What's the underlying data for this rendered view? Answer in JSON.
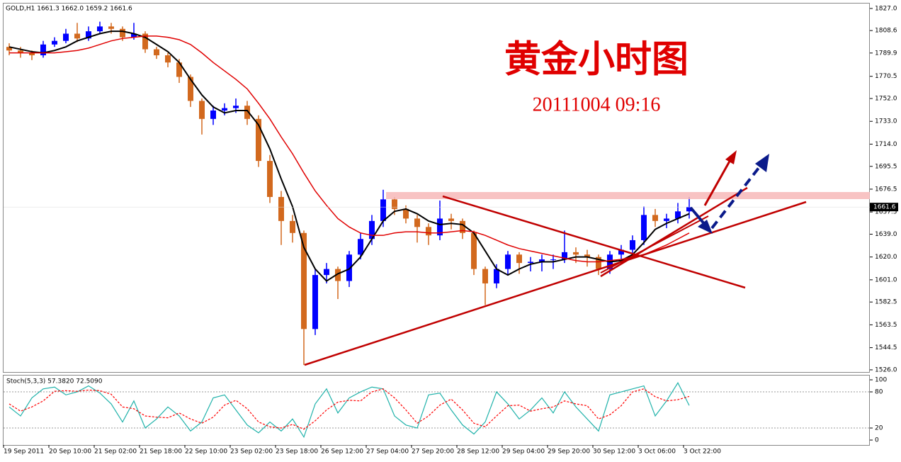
{
  "header": "GOLD,H1  1661.3 1662.0 1659.2 1661.6",
  "chart_data": [
    {
      "type": "candlestick",
      "title": "黄金小时图",
      "subtitle": "20111004 09:16",
      "last_price": 1661.6,
      "up_color": "#0000ff",
      "down_color": "#d2691e",
      "ylim": [
        1524.2,
        1831.1
      ],
      "yticks": [
        {
          "value": 1827,
          "label": "1827.0"
        },
        {
          "value": 1808.6,
          "label": "1808.6"
        },
        {
          "value": 1789.9,
          "label": "1789.9"
        },
        {
          "value": 1770.5,
          "label": "1770.5"
        },
        {
          "value": 1752,
          "label": "1752.0"
        },
        {
          "value": 1733,
          "label": "1733.0"
        },
        {
          "value": 1714,
          "label": "1714.0"
        },
        {
          "value": 1695.5,
          "label": "1695.5"
        },
        {
          "value": 1676.5,
          "label": "1676.5"
        },
        {
          "value": 1657.5,
          "label": "1657.5"
        },
        {
          "value": 1639,
          "label": "1639.0"
        },
        {
          "value": 1620,
          "label": "1620.0"
        },
        {
          "value": 1601,
          "label": "1601.0"
        },
        {
          "value": 1582.5,
          "label": "1582.5"
        },
        {
          "value": 1563.5,
          "label": "1563.5"
        },
        {
          "value": 1544.5,
          "label": "1544.5"
        },
        {
          "value": 1526,
          "label": "1526.0"
        }
      ],
      "open": [
        1795,
        1792,
        1790,
        1788,
        1797,
        1800,
        1806,
        1802,
        1808,
        1812,
        1810,
        1803,
        1806,
        1793,
        1788,
        1782,
        1770,
        1750,
        1735,
        1742,
        1744,
        1746,
        1735,
        1700,
        1670,
        1650,
        1640,
        1560,
        1605,
        1610,
        1600,
        1622,
        1635,
        1650,
        1668,
        1660,
        1652,
        1645,
        1638,
        1652,
        1650,
        1640,
        1610,
        1598,
        1610,
        1622,
        1615,
        1616,
        1618,
        1618,
        1624,
        1622,
        1620,
        1610,
        1622,
        1626,
        1634,
        1655,
        1650,
        1652,
        1658
      ],
      "high": [
        1798,
        1795,
        1792,
        1800,
        1803,
        1810,
        1815,
        1812,
        1816,
        1815,
        1812,
        1815,
        1808,
        1795,
        1790,
        1785,
        1772,
        1752,
        1746,
        1748,
        1752,
        1750,
        1738,
        1705,
        1675,
        1655,
        1642,
        1610,
        1615,
        1612,
        1625,
        1640,
        1655,
        1676,
        1670,
        1663,
        1655,
        1648,
        1667,
        1656,
        1652,
        1642,
        1612,
        1614,
        1625,
        1624,
        1620,
        1622,
        1622,
        1642,
        1628,
        1626,
        1622,
        1625,
        1630,
        1638,
        1662,
        1660,
        1656,
        1665,
        1670
      ],
      "low": [
        1788,
        1786,
        1784,
        1786,
        1795,
        1798,
        1799,
        1800,
        1806,
        1806,
        1800,
        1801,
        1790,
        1785,
        1778,
        1765,
        1745,
        1722,
        1730,
        1738,
        1740,
        1730,
        1695,
        1665,
        1630,
        1632,
        1530,
        1555,
        1598,
        1585,
        1595,
        1618,
        1630,
        1645,
        1655,
        1648,
        1632,
        1630,
        1634,
        1643,
        1635,
        1605,
        1580,
        1594,
        1605,
        1606,
        1608,
        1608,
        1610,
        1615,
        1615,
        1612,
        1605,
        1606,
        1618,
        1620,
        1630,
        1645,
        1644,
        1648,
        1652
      ],
      "close": [
        1792,
        1790,
        1788,
        1797,
        1800,
        1806,
        1802,
        1808,
        1812,
        1810,
        1803,
        1806,
        1793,
        1788,
        1782,
        1770,
        1750,
        1735,
        1742,
        1744,
        1746,
        1735,
        1700,
        1670,
        1650,
        1640,
        1560,
        1605,
        1610,
        1600,
        1622,
        1635,
        1650,
        1668,
        1660,
        1652,
        1645,
        1638,
        1652,
        1650,
        1640,
        1610,
        1598,
        1610,
        1622,
        1615,
        1616,
        1618,
        1618,
        1624,
        1622,
        1620,
        1610,
        1622,
        1626,
        1634,
        1655,
        1650,
        1652,
        1658,
        1661.6
      ],
      "lines": [
        {
          "color": "#000000",
          "values": [
            1795,
            1793,
            1791,
            1790,
            1792,
            1795,
            1800,
            1803,
            1806,
            1808,
            1808,
            1806,
            1803,
            1797,
            1791,
            1782,
            1768,
            1755,
            1745,
            1740,
            1742,
            1742,
            1730,
            1710,
            1685,
            1662,
            1628,
            1610,
            1600,
            1606,
            1610,
            1620,
            1635,
            1650,
            1658,
            1660,
            1656,
            1650,
            1647,
            1648,
            1647,
            1640,
            1625,
            1610,
            1605,
            1610,
            1614,
            1616,
            1616,
            1618,
            1620,
            1620,
            1618,
            1616,
            1617,
            1622,
            1632,
            1643,
            1648,
            1652,
            1656
          ]
        },
        {
          "color": "#e00000",
          "values": [
            1790,
            1790,
            1790,
            1790,
            1790,
            1791,
            1792,
            1794,
            1797,
            1800,
            1802,
            1803,
            1804,
            1804,
            1803,
            1801,
            1797,
            1790,
            1782,
            1775,
            1768,
            1760,
            1748,
            1735,
            1720,
            1706,
            1690,
            1675,
            1663,
            1652,
            1645,
            1640,
            1638,
            1638,
            1640,
            1641,
            1641,
            1640,
            1640,
            1641,
            1642,
            1641,
            1638,
            1634,
            1630,
            1627,
            1625,
            1623,
            1621,
            1619,
            1617,
            1616,
            1616,
            1617,
            1618,
            1620,
            1622,
            1626,
            1630,
            1635,
            1640
          ]
        }
      ]
    },
    {
      "type": "line",
      "label": "Stoch(5,3,3) 57.3820 72.5090",
      "ylim": [
        -8.2,
        107.1
      ],
      "yticks": [
        100,
        80,
        20,
        0
      ],
      "categories": [
        "19 Sep 2011",
        null,
        null,
        null,
        "20 Sep 10:00",
        null,
        null,
        null,
        "21 Sep 02:00",
        null,
        null,
        null,
        "21 Sep 18:00",
        null,
        null,
        null,
        "22 Sep 10:00",
        null,
        null,
        null,
        "23 Sep 02:00",
        null,
        null,
        null,
        "23 Sep 18:00",
        null,
        null,
        null,
        "26 Sep 12:00",
        null,
        null,
        null,
        "27 Sep 04:00",
        null,
        null,
        null,
        "27 Sep 20:00",
        null,
        null,
        null,
        "28 Sep 12:00",
        null,
        null,
        null,
        "29 Sep 04:00",
        null,
        null,
        null,
        "29 Sep 20:00",
        null,
        null,
        null,
        "30 Sep 12:00",
        null,
        null,
        null,
        "3 Oct 06:00",
        null,
        null,
        null,
        "3 Oct 22:00"
      ],
      "series": [
        {
          "color": "#20b2aa",
          "dashed": false,
          "values": [
            55,
            40,
            70,
            85,
            88,
            75,
            80,
            90,
            78,
            60,
            30,
            65,
            20,
            35,
            55,
            40,
            15,
            30,
            70,
            75,
            50,
            25,
            12,
            30,
            15,
            35,
            5,
            60,
            85,
            45,
            70,
            80,
            88,
            85,
            40,
            25,
            20,
            75,
            78,
            50,
            25,
            10,
            30,
            80,
            60,
            35,
            50,
            70,
            45,
            80,
            55,
            35,
            15,
            75,
            80,
            85,
            90,
            40,
            65,
            95,
            57.382
          ]
        },
        {
          "color": "#ff0000",
          "dashed": true,
          "values": [
            60,
            48,
            55,
            65,
            81,
            82,
            81,
            83,
            82,
            76,
            55,
            52,
            40,
            38,
            37,
            45,
            35,
            28,
            38,
            58,
            66,
            52,
            30,
            22,
            20,
            26,
            18,
            32,
            50,
            63,
            66,
            65,
            80,
            85,
            70,
            50,
            28,
            40,
            58,
            68,
            50,
            28,
            22,
            40,
            57,
            58,
            48,
            52,
            55,
            65,
            60,
            57,
            35,
            42,
            57,
            80,
            85,
            72,
            65,
            67,
            72.509
          ]
        }
      ]
    }
  ]
}
